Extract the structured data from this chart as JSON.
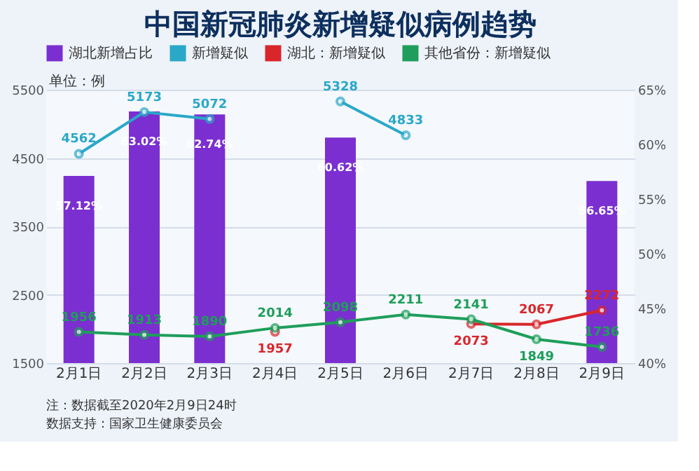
{
  "chart_data": {
    "type": "line",
    "title": "中国新冠肺炎新增疑似病例趋势",
    "categories": [
      "2月1日",
      "2月2日",
      "2月3日",
      "2月4日",
      "2月5日",
      "2月6日",
      "2月7日",
      "2月8日",
      "2月9日"
    ],
    "series": [
      {
        "name": "湖北新增占比",
        "type": "bar",
        "axis": "y2",
        "color": "#7b2fd0",
        "values": [
          57.12,
          63.02,
          62.74,
          null,
          60.62,
          null,
          null,
          null,
          56.65
        ],
        "value_labels": [
          "57.12%",
          "63.02%",
          "62.74%",
          null,
          "60.62%",
          null,
          null,
          null,
          "56.65%"
        ]
      },
      {
        "name": "新增疑似",
        "color": "#2aa8c8",
        "values": [
          4562,
          5173,
          5072,
          null,
          5328,
          4833,
          null,
          null,
          null
        ]
      },
      {
        "name": "湖北：新增疑似",
        "color": "#d9262b",
        "values": [
          null,
          null,
          null,
          1957,
          null,
          null,
          2073,
          2067,
          2272
        ]
      },
      {
        "name": "其他省份：新增疑似",
        "color": "#1e9e5a",
        "values": [
          1956,
          1913,
          1890,
          2014,
          2098,
          2211,
          2141,
          1849,
          1736
        ]
      }
    ],
    "ylim": [
      1500,
      5500
    ],
    "yticks": [
      1500,
      2500,
      3500,
      4500,
      5500
    ],
    "y2lim": [
      40,
      65
    ],
    "y2ticks": [
      {
        "value": 40,
        "label": "40%"
      },
      {
        "value": 45,
        "label": "45%"
      },
      {
        "value": 50,
        "label": "50%"
      },
      {
        "value": 55,
        "label": "55%"
      },
      {
        "value": 60,
        "label": "60%"
      },
      {
        "value": 65,
        "label": "65%"
      }
    ],
    "annotations": [
      "单位：例",
      "注：数据截至2020年2月9日24时",
      "数据支持：国家卫生健康委员会"
    ],
    "data_labels": true,
    "legend": "top",
    "grid": "y",
    "marker": "circle"
  }
}
